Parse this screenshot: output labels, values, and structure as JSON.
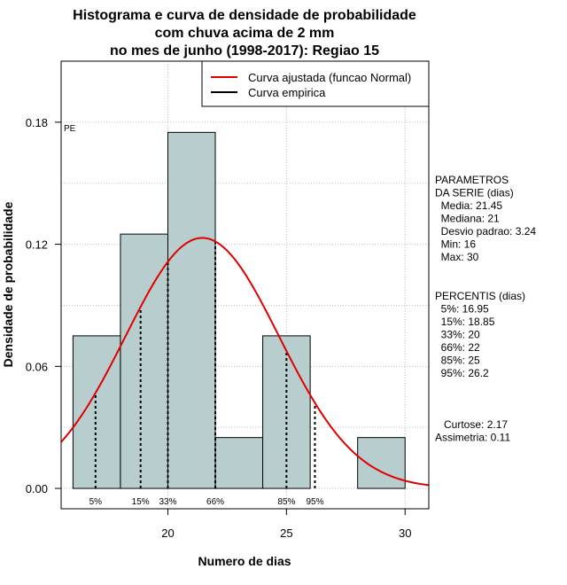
{
  "chart_data": {
    "type": "bar",
    "title_lines": [
      "Histograma e curva de densidade de probabilidade",
      "com chuva acima de 2 mm",
      "no mes de junho (1998-2017): Regiao 15"
    ],
    "xlabel": "Numero de dias",
    "ylabel": "Densidade de probabilidade",
    "xlim": [
      15.5,
      31
    ],
    "ylim": [
      -0.01,
      0.21
    ],
    "x_ticks": [
      20,
      25,
      30
    ],
    "y_ticks": [
      0.0,
      0.06,
      0.12,
      0.18
    ],
    "y_tick_labels": [
      "0.00",
      "0.06",
      "0.12",
      "0.18"
    ],
    "bins": [
      {
        "start": 16,
        "end": 18,
        "density": 0.075
      },
      {
        "start": 18,
        "end": 20,
        "density": 0.125
      },
      {
        "start": 20,
        "end": 22,
        "density": 0.175
      },
      {
        "start": 22,
        "end": 24,
        "density": 0.025
      },
      {
        "start": 24,
        "end": 26,
        "density": 0.075
      },
      {
        "start": 26,
        "end": 28,
        "density": 0.0
      },
      {
        "start": 28,
        "end": 30,
        "density": 0.025
      }
    ],
    "bar_color": "#b8cece",
    "normal_fit": {
      "mean": 21.45,
      "sd": 3.24,
      "color": "#e00000"
    },
    "percentiles": [
      {
        "label": "5%",
        "value": 16.95
      },
      {
        "label": "15%",
        "value": 18.85
      },
      {
        "label": "33%",
        "value": 20
      },
      {
        "label": "66%",
        "value": 22
      },
      {
        "label": "85%",
        "value": 25
      },
      {
        "label": "95%",
        "value": 26.2
      }
    ],
    "corner_label": "PE",
    "legend": {
      "placement": "top-right",
      "items": [
        {
          "label": "Curva ajustada (funcao Normal)",
          "color": "#e00000"
        },
        {
          "label": "Curva empirica",
          "color": "#000000"
        }
      ]
    },
    "grid": true
  },
  "side_panel": {
    "parametros": [
      "PARAMETROS",
      "DA SERIE (dias)",
      "  Media: 21.45",
      "  Mediana: 21",
      "  Desvio padrao: 3.24",
      "  Min: 16",
      "  Max: 30"
    ],
    "percentis": [
      "PERCENTIS (dias)",
      "  5%: 16.95",
      "  15%: 18.85",
      "  33%: 20",
      "  66%: 22",
      "  85%: 25",
      "  95%: 26.2"
    ],
    "shape": [
      "   Curtose: 2.17",
      "Assimetria: 0.11"
    ]
  }
}
